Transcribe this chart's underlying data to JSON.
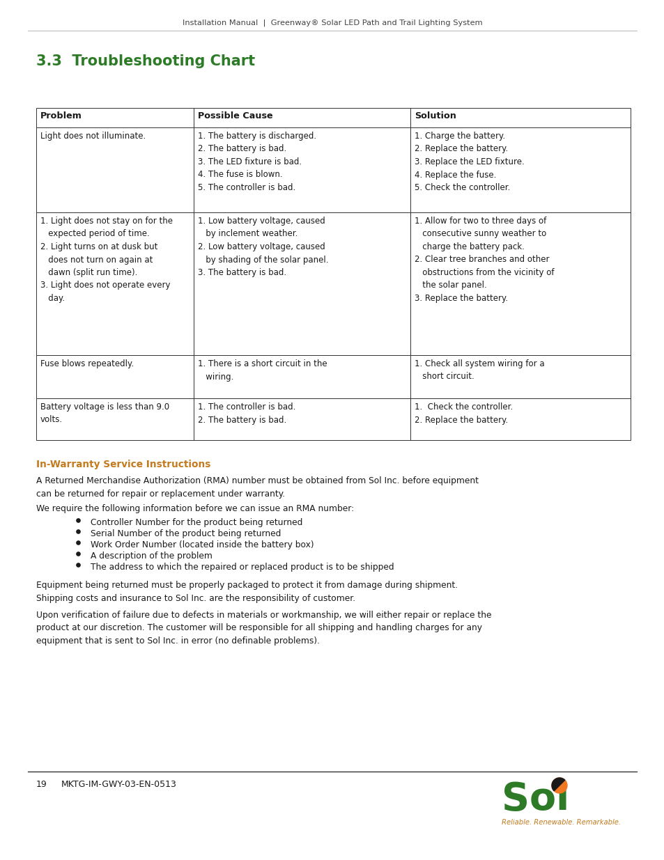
{
  "page_title": "Installation Manual  |  Greenway® Solar LED Path and Trail Lighting System",
  "section_title": "3.3  Troubleshooting Chart",
  "section_title_color": "#2d7a27",
  "table_headers": [
    "Problem",
    "Possible Cause",
    "Solution"
  ],
  "table_rows": [
    {
      "problem": "Light does not illuminate.",
      "cause": "1. The battery is discharged.\n2. The battery is bad.\n3. The LED fixture is bad.\n4. The fuse is blown.\n5. The controller is bad.",
      "solution": "1. Charge the battery.\n2. Replace the battery.\n3. Replace the LED fixture.\n4. Replace the fuse.\n5. Check the controller."
    },
    {
      "problem": "1. Light does not stay on for the\n   expected period of time.\n2. Light turns on at dusk but\n   does not turn on again at\n   dawn (split run time).\n3. Light does not operate every\n   day.",
      "cause": "1. Low battery voltage, caused\n   by inclement weather.\n2. Low battery voltage, caused\n   by shading of the solar panel.\n3. The battery is bad.",
      "solution": "1. Allow for two to three days of\n   consecutive sunny weather to\n   charge the battery pack.\n2. Clear tree branches and other\n   obstructions from the vicinity of\n   the solar panel.\n3. Replace the battery."
    },
    {
      "problem": "Fuse blows repeatedly.",
      "cause": "1. There is a short circuit in the\n   wiring.",
      "solution": "1. Check all system wiring for a\n   short circuit."
    },
    {
      "problem": "Battery voltage is less than 9.0\nvolts.",
      "cause": "1. The controller is bad.\n2. The battery is bad.",
      "solution": "1.  Check the controller.\n2. Replace the battery."
    }
  ],
  "warranty_title": "In-Warranty Service Instructions",
  "warranty_title_color": "#c47a1e",
  "warranty_para1": "A Returned Merchandise Authorization (RMA) number must be obtained from Sol Inc. before equipment\ncan be returned for repair or replacement under warranty.",
  "warranty_para2": "We require the following information before we can issue an RMA number:",
  "bullet_items": [
    "Controller Number for the product being returned",
    "Serial Number of the product being returned",
    "Work Order Number (located inside the battery box)",
    "A description of the problem",
    "The address to which the repaired or replaced product is to be shipped"
  ],
  "warranty_para3": "Equipment being returned must be properly packaged to protect it from damage during shipment.\nShipping costs and insurance to Sol Inc. are the responsibility of customer.",
  "warranty_para4": "Upon verification of failure due to defects in materials or workmanship, we will either repair or replace the\nproduct at our discretion. The customer will be responsible for all shipping and handling charges for any\nequipment that is sent to Sol Inc. in error (no definable problems).",
  "footer_page": "19",
  "footer_code": "MKTG-IM-GWY-03-EN-0513",
  "sol_text_color": "#2d7a27",
  "sol_tagline_color": "#c47a1e",
  "sol_tagline": "Reliable. Renewable. Remarkable.",
  "background_color": "#ffffff",
  "text_color": "#1a1a1a",
  "border_color": "#333333"
}
